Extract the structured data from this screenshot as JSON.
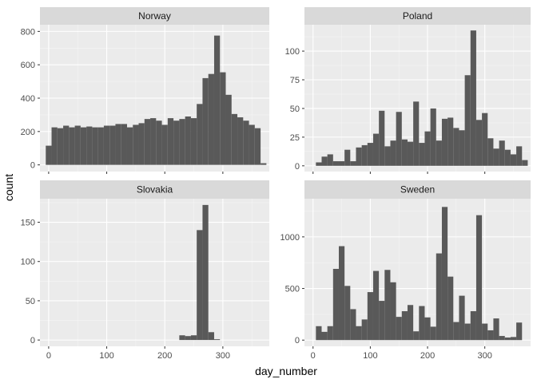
{
  "colors": {
    "panel_bg": "#ebebeb",
    "strip_bg": "#d9d9d9",
    "bar_fill": "#595959",
    "grid_major": "#ffffff",
    "grid_minor": "#f5f5f5"
  },
  "labels": {
    "xlabel": "day_number",
    "ylabel": "count"
  },
  "chart_data": {
    "type": "bar",
    "layout": "facet_wrap 2x2",
    "xlabel": "day_number",
    "ylabel": "count",
    "x_ticks": [
      0,
      100,
      200,
      300
    ],
    "xlim": [
      -15,
      380
    ],
    "bin_width": 10,
    "x": [
      0,
      10,
      20,
      30,
      40,
      50,
      60,
      70,
      80,
      90,
      100,
      110,
      120,
      130,
      140,
      150,
      160,
      170,
      180,
      190,
      200,
      210,
      220,
      230,
      240,
      250,
      260,
      270,
      280,
      290,
      300,
      310,
      320,
      330,
      340,
      350,
      360,
      370
    ],
    "panels": [
      {
        "name": "Norway",
        "ylim": [
          -40,
          840
        ],
        "y_ticks": [
          0,
          200,
          400,
          600,
          800
        ],
        "values": [
          115,
          225,
          220,
          235,
          225,
          235,
          225,
          230,
          225,
          225,
          235,
          235,
          245,
          245,
          225,
          240,
          250,
          275,
          280,
          265,
          240,
          280,
          265,
          275,
          290,
          280,
          365,
          520,
          545,
          775,
          555,
          420,
          305,
          285,
          265,
          240,
          220,
          10
        ]
      },
      {
        "name": "Poland",
        "ylim": [
          -5,
          123
        ],
        "y_ticks": [
          0,
          25,
          50,
          75,
          100
        ],
        "values": [
          0,
          3,
          8,
          10,
          4,
          4,
          14,
          4,
          16,
          18,
          20,
          28,
          48,
          17,
          22,
          47,
          23,
          21,
          56,
          20,
          30,
          50,
          22,
          41,
          42,
          33,
          31,
          79,
          118,
          40,
          46,
          24,
          15,
          22,
          14,
          10,
          17,
          5
        ]
      },
      {
        "name": "Slovakia",
        "ylim": [
          -8,
          180
        ],
        "y_ticks": [
          0,
          50,
          100,
          150
        ],
        "values": [
          0,
          0,
          0,
          0,
          0,
          0,
          0,
          0,
          0,
          0,
          0,
          0,
          0,
          0,
          0,
          0,
          0,
          0,
          0,
          0,
          0,
          0,
          0,
          6,
          5,
          6,
          140,
          172,
          10,
          1,
          0,
          0,
          0,
          0,
          0,
          0,
          0,
          0
        ]
      },
      {
        "name": "Sweden",
        "ylim": [
          -60,
          1370
        ],
        "y_ticks": [
          0,
          500,
          1000
        ],
        "values": [
          0,
          135,
          80,
          135,
          690,
          910,
          525,
          300,
          135,
          200,
          465,
          670,
          380,
          680,
          560,
          225,
          280,
          340,
          85,
          330,
          220,
          130,
          840,
          1290,
          615,
          175,
          430,
          160,
          280,
          1210,
          160,
          95,
          210,
          40,
          25,
          30,
          170,
          0
        ]
      }
    ]
  }
}
